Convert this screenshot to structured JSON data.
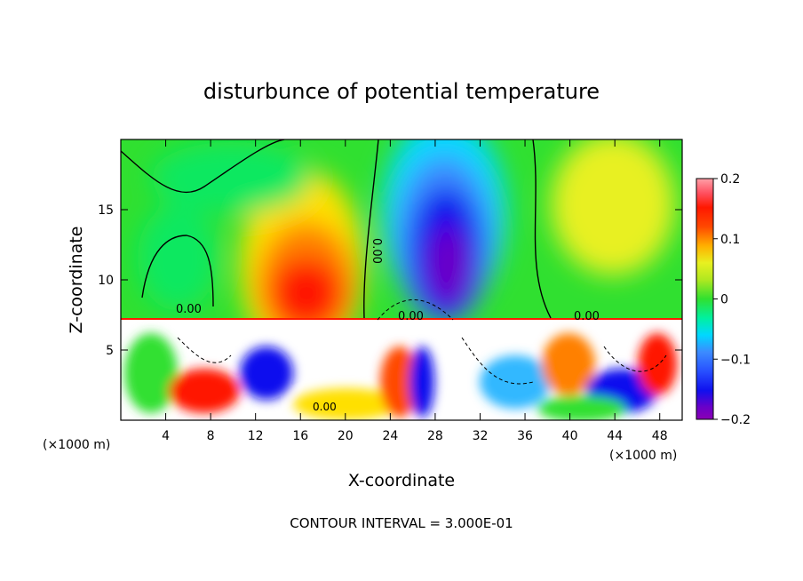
{
  "chart_data": {
    "type": "heatmap",
    "title": "disturbunce of potential temperature",
    "xlabel": "X-coordinate",
    "ylabel": "Z-coordinate",
    "x_unit": "(×1000 m)",
    "y_unit": "(×1000 m)",
    "xlim": [
      0,
      50
    ],
    "ylim": [
      0,
      20
    ],
    "x_ticks": [
      4,
      8,
      12,
      16,
      20,
      24,
      28,
      32,
      36,
      40,
      44,
      48
    ],
    "x_tick_labels": [
      "4",
      "8",
      "12",
      "16",
      "20",
      "24",
      "28",
      "32",
      "36",
      "40",
      "44",
      "48"
    ],
    "y_ticks": [
      5,
      10,
      15
    ],
    "y_tick_labels": [
      "5",
      "10",
      "15"
    ],
    "colorbar": {
      "min": -0.2,
      "max": 0.2,
      "tick_values": [
        0.2,
        0.1,
        0,
        -0.1,
        -0.2
      ],
      "tick_labels": [
        "0.2",
        "0.1",
        "0",
        "−0.1",
        "−0.2"
      ],
      "colors": [
        "#8b00b4",
        "#6a00c8",
        "#3c00d8",
        "#1010ee",
        "#2850ff",
        "#3c8cff",
        "#30b8ff",
        "#00d8ff",
        "#00f0e0",
        "#00f0a0",
        "#10e860",
        "#30e030",
        "#70e020",
        "#b0e820",
        "#e8f020",
        "#ffe000",
        "#ffb000",
        "#ff8000",
        "#ff4800",
        "#ff1800",
        "#ff5060",
        "#ffa0a8"
      ]
    },
    "contour_labels": [
      "0.00",
      "0.00",
      "0.00",
      "0.00",
      "0.00"
    ],
    "footer": "CONTOUR INTERVAL = 3.000E-01",
    "field_features": [
      {
        "kind": "warm-anomaly",
        "x": 16.5,
        "z": 10.0,
        "value": 0.19
      },
      {
        "kind": "cold-anomaly",
        "x": 29.0,
        "z": 11.5,
        "value": -0.2
      },
      {
        "kind": "weak-warm",
        "x": 44.0,
        "z": 15.0,
        "value": 0.07
      },
      {
        "kind": "weak-cold",
        "x": 6.0,
        "z": 12.0,
        "value": -0.03
      }
    ],
    "boundary_layer_top_z": 7.2
  }
}
